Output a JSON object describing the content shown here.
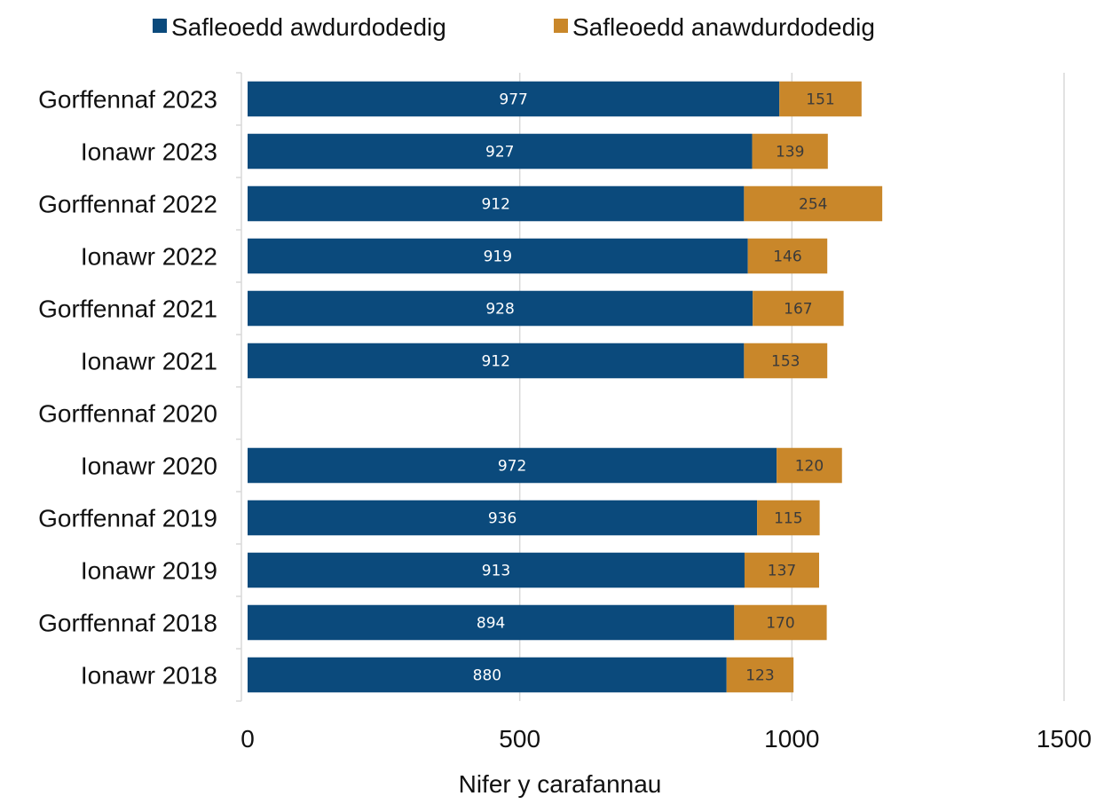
{
  "chart_data": {
    "type": "bar",
    "orientation": "horizontal",
    "stacked": true,
    "title": "",
    "xlabel": "Nifer y carafannau",
    "ylabel": "",
    "xlim": [
      0,
      1500
    ],
    "xticks": [
      0,
      500,
      1000,
      1500
    ],
    "grid": true,
    "legend_position": "top",
    "categories": [
      "Gorffennaf 2023",
      "Ionawr 2023",
      "Gorffennaf 2022",
      "Ionawr 2022",
      "Gorffennaf 2021",
      "Ionawr 2021",
      "Gorffennaf 2020",
      "Ionawr 2020",
      "Gorffennaf 2019",
      "Ionawr 2019",
      "Gorffennaf 2018",
      "Ionawr 2018"
    ],
    "series": [
      {
        "name": "Safleoedd awdurdodedig",
        "color": "#0b4a7c",
        "label_color": "#ffffff",
        "values": [
          977,
          927,
          912,
          919,
          928,
          912,
          null,
          972,
          936,
          913,
          894,
          880
        ]
      },
      {
        "name": "Safleoedd anawdurdodedig",
        "color": "#c9872a",
        "label_color": "#3a3a3a",
        "values": [
          151,
          139,
          254,
          146,
          167,
          153,
          null,
          120,
          115,
          137,
          170,
          123
        ]
      }
    ]
  }
}
